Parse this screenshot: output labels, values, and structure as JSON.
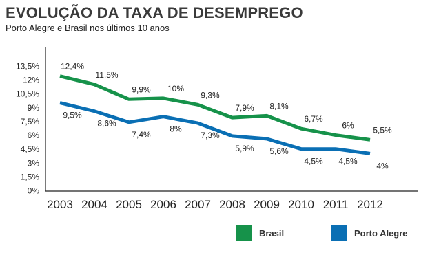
{
  "title": "EVOLUÇÃO DA TAXA DE DESEMPREGO",
  "subtitle": "Porto Alegre e Brasil nos últimos 10 anos",
  "colors": {
    "brasil": "#16924a",
    "porto_alegre": "#0a6fb4",
    "axis": "#222222"
  },
  "chart_data": {
    "type": "line",
    "title": "EVOLUÇÃO DA TAXA DE DESEMPREGO",
    "subtitle": "Porto Alegre e Brasil nos últimos 10 anos",
    "xlabel": "",
    "ylabel": "",
    "x": [
      "2003",
      "2004",
      "2005",
      "2006",
      "2007",
      "2008",
      "2009",
      "2010",
      "2011",
      "2012"
    ],
    "y_ticks": [
      "0%",
      "1,5%",
      "3%",
      "4,5%",
      "6%",
      "7,5%",
      "9%",
      "10,5%",
      "12%",
      "13,5%"
    ],
    "ylim": [
      0,
      13.5
    ],
    "grid": false,
    "legend_position": "bottom-right",
    "series": [
      {
        "name": "Brasil",
        "color": "#16924a",
        "values": [
          12.4,
          11.5,
          9.9,
          10,
          9.3,
          7.9,
          8.1,
          6.7,
          6,
          5.5
        ],
        "labels": [
          "12,4%",
          "11,5%",
          "9,9%",
          "10%",
          "9,3%",
          "7,9%",
          "8,1%",
          "6,7%",
          "6%",
          "5,5%"
        ]
      },
      {
        "name": "Porto Alegre",
        "color": "#0a6fb4",
        "values": [
          9.5,
          8.6,
          7.4,
          8,
          7.3,
          5.9,
          5.6,
          4.5,
          4.5,
          4
        ],
        "labels": [
          "9,5%",
          "8,6%",
          "7,4%",
          "8%",
          "7,3%",
          "5,9%",
          "5,6%",
          "4,5%",
          "4,5%",
          "4%"
        ]
      }
    ]
  }
}
